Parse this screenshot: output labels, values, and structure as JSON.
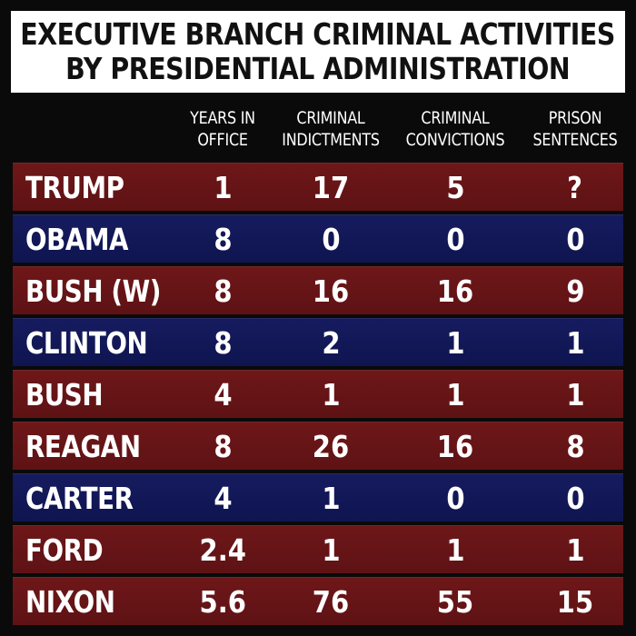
{
  "title": {
    "line1": "EXECUTIVE BRANCH CRIMINAL ACTIVITIES",
    "line2": "BY PRESIDENTIAL ADMINISTRATION"
  },
  "columns": [
    {
      "line1": "YEARS IN",
      "line2": "OFFICE"
    },
    {
      "line1": "CRIMINAL",
      "line2": "INDICTMENTS"
    },
    {
      "line1": "CRIMINAL",
      "line2": "CONVICTIONS"
    },
    {
      "line1": "PRISON",
      "line2": "SENTENCES"
    }
  ],
  "colors": {
    "red_row": "#6e1719",
    "blue_row": "#151b5e",
    "background": "#0a0a0a",
    "title_bg": "#ffffff"
  },
  "chart_data": {
    "type": "table",
    "title": "EXECUTIVE BRANCH CRIMINAL ACTIVITIES BY PRESIDENTIAL ADMINISTRATION",
    "columns": [
      "YEARS IN OFFICE",
      "CRIMINAL INDICTMENTS",
      "CRIMINAL CONVICTIONS",
      "PRISON SENTENCES"
    ],
    "rows": [
      {
        "name": "TRUMP",
        "color": "red",
        "values": [
          "1",
          "17",
          "5",
          "?"
        ]
      },
      {
        "name": "OBAMA",
        "color": "blue",
        "values": [
          "8",
          "0",
          "0",
          "0"
        ]
      },
      {
        "name": "BUSH (W)",
        "color": "red",
        "values": [
          "8",
          "16",
          "16",
          "9"
        ]
      },
      {
        "name": "CLINTON",
        "color": "blue",
        "values": [
          "8",
          "2",
          "1",
          "1"
        ]
      },
      {
        "name": "BUSH",
        "color": "red",
        "values": [
          "4",
          "1",
          "1",
          "1"
        ]
      },
      {
        "name": "REAGAN",
        "color": "red",
        "values": [
          "8",
          "26",
          "16",
          "8"
        ]
      },
      {
        "name": "CARTER",
        "color": "blue",
        "values": [
          "4",
          "1",
          "0",
          "0"
        ]
      },
      {
        "name": "FORD",
        "color": "red",
        "values": [
          "2.4",
          "1",
          "1",
          "1"
        ]
      },
      {
        "name": "NIXON",
        "color": "red",
        "values": [
          "5.6",
          "76",
          "55",
          "15"
        ]
      }
    ]
  }
}
